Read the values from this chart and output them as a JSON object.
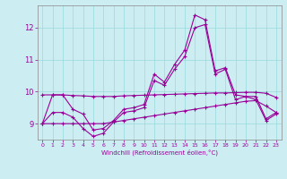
{
  "xlabel": "Windchill (Refroidissement éolien,°C)",
  "background_color": "#cceef2",
  "grid_color": "#99d9dd",
  "line_color": "#990099",
  "x": [
    0,
    1,
    2,
    3,
    4,
    5,
    6,
    7,
    8,
    9,
    10,
    11,
    12,
    13,
    14,
    15,
    16,
    17,
    18,
    19,
    20,
    21,
    22,
    23
  ],
  "series1": [
    9.0,
    9.9,
    9.9,
    9.45,
    9.3,
    8.8,
    8.85,
    9.1,
    9.45,
    9.5,
    9.6,
    10.55,
    10.3,
    10.85,
    11.3,
    12.4,
    12.25,
    10.65,
    10.75,
    9.9,
    9.85,
    9.85,
    9.15,
    9.35
  ],
  "series2": [
    9.0,
    9.35,
    9.35,
    9.2,
    8.85,
    8.6,
    8.7,
    9.05,
    9.35,
    9.4,
    9.5,
    10.35,
    10.2,
    10.7,
    11.1,
    12.0,
    12.1,
    10.55,
    10.7,
    9.75,
    9.85,
    9.75,
    9.1,
    9.3
  ],
  "series3": [
    9.9,
    9.9,
    9.9,
    9.88,
    9.87,
    9.85,
    9.85,
    9.85,
    9.87,
    9.88,
    9.89,
    9.9,
    9.91,
    9.92,
    9.93,
    9.94,
    9.95,
    9.96,
    9.96,
    9.97,
    9.98,
    9.98,
    9.95,
    9.82
  ],
  "series4": [
    9.0,
    9.0,
    9.0,
    9.0,
    9.0,
    9.0,
    9.0,
    9.05,
    9.1,
    9.15,
    9.2,
    9.25,
    9.3,
    9.35,
    9.4,
    9.45,
    9.5,
    9.55,
    9.6,
    9.65,
    9.7,
    9.72,
    9.55,
    9.35
  ],
  "ylim": [
    8.5,
    12.7
  ],
  "yticks": [
    9,
    10,
    11,
    12
  ],
  "xticks": [
    0,
    1,
    2,
    3,
    4,
    5,
    6,
    7,
    8,
    9,
    10,
    11,
    12,
    13,
    14,
    15,
    16,
    17,
    18,
    19,
    20,
    21,
    22,
    23
  ]
}
